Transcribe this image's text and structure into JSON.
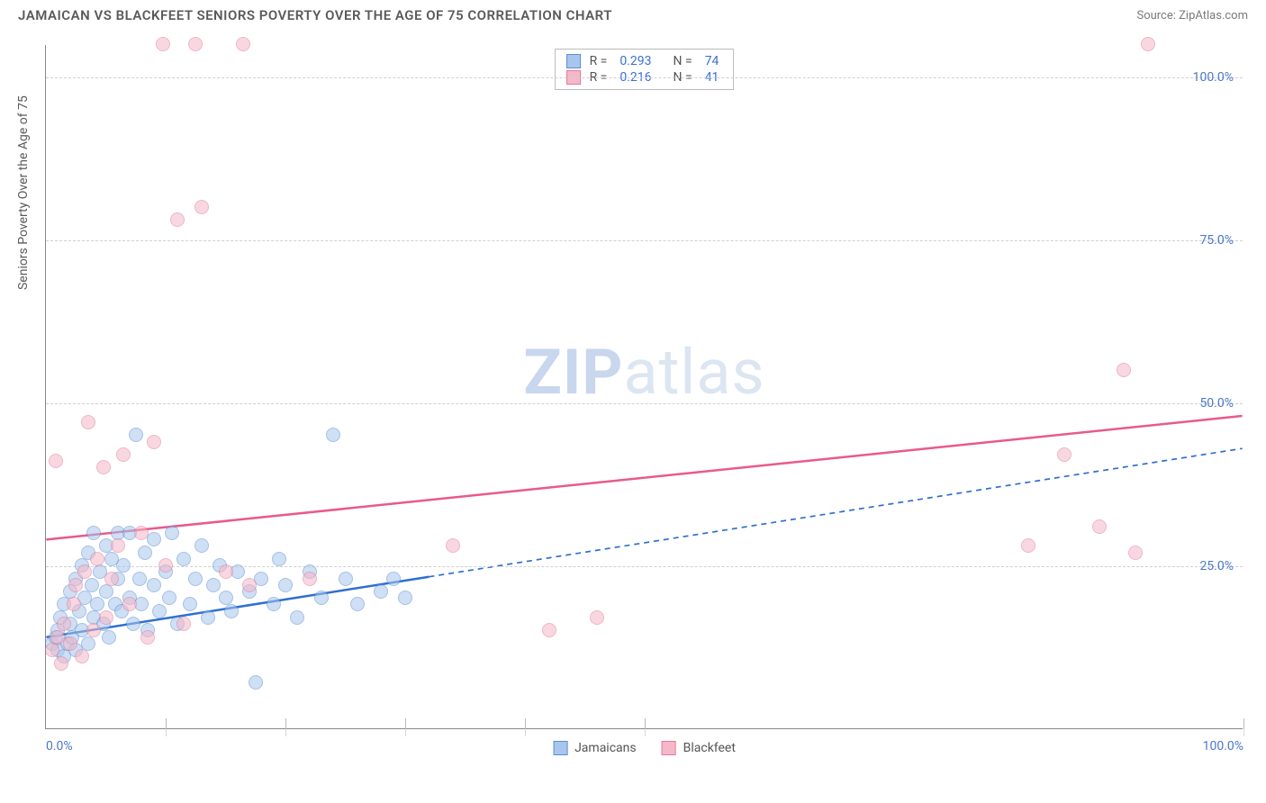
{
  "title": "JAMAICAN VS BLACKFEET SENIORS POVERTY OVER THE AGE OF 75 CORRELATION CHART",
  "source_label": "Source: ",
  "source_name": "ZipAtlas.com",
  "y_axis_label": "Seniors Poverty Over the Age of 75",
  "watermark": {
    "bold": "ZIP",
    "light": "atlas"
  },
  "chart": {
    "type": "scatter",
    "xlim": [
      0,
      100
    ],
    "ylim": [
      0,
      105
    ],
    "x_ticks": [
      0,
      10,
      20,
      30,
      40,
      50,
      100
    ],
    "x_tick_labels": {
      "0": "0.0%",
      "100": "100.0%"
    },
    "y_ticks": [
      25,
      50,
      75,
      100
    ],
    "y_tick_labels": {
      "25": "25.0%",
      "50": "50.0%",
      "75": "75.0%",
      "100": "100.0%"
    },
    "background_color": "#ffffff",
    "grid_color": "#d0d0d0",
    "axis_color": "#888888",
    "tick_label_color": "#4a78c8",
    "marker_radius": 8,
    "series": [
      {
        "name": "Jamaicans",
        "fill": "#a8c6ec",
        "stroke": "#5a8fd6",
        "fill_opacity": 0.55,
        "R": "0.293",
        "N": "74",
        "trend": {
          "x1": 0,
          "y1": 14,
          "x2": 100,
          "y2": 43,
          "solid_until_x": 32,
          "color": "#2f6fd0",
          "width": 2.5
        },
        "points": [
          [
            0.5,
            13
          ],
          [
            0.8,
            14
          ],
          [
            1,
            12
          ],
          [
            1,
            15
          ],
          [
            1.2,
            17
          ],
          [
            1.5,
            11
          ],
          [
            1.5,
            19
          ],
          [
            1.8,
            13
          ],
          [
            2,
            16
          ],
          [
            2,
            21
          ],
          [
            2.2,
            14
          ],
          [
            2.5,
            23
          ],
          [
            2.5,
            12
          ],
          [
            2.8,
            18
          ],
          [
            3,
            15
          ],
          [
            3,
            25
          ],
          [
            3.2,
            20
          ],
          [
            3.5,
            13
          ],
          [
            3.5,
            27
          ],
          [
            3.8,
            22
          ],
          [
            4,
            17
          ],
          [
            4,
            30
          ],
          [
            4.3,
            19
          ],
          [
            4.5,
            24
          ],
          [
            4.8,
            16
          ],
          [
            5,
            28
          ],
          [
            5,
            21
          ],
          [
            5.3,
            14
          ],
          [
            5.5,
            26
          ],
          [
            5.8,
            19
          ],
          [
            6,
            23
          ],
          [
            6,
            30
          ],
          [
            6.3,
            18
          ],
          [
            6.5,
            25
          ],
          [
            7,
            20
          ],
          [
            7,
            30
          ],
          [
            7.3,
            16
          ],
          [
            7.5,
            45
          ],
          [
            7.8,
            23
          ],
          [
            8,
            19
          ],
          [
            8.3,
            27
          ],
          [
            8.5,
            15
          ],
          [
            9,
            22
          ],
          [
            9,
            29
          ],
          [
            9.5,
            18
          ],
          [
            10,
            24
          ],
          [
            10.3,
            20
          ],
          [
            10.5,
            30
          ],
          [
            11,
            16
          ],
          [
            11.5,
            26
          ],
          [
            12,
            19
          ],
          [
            12.5,
            23
          ],
          [
            13,
            28
          ],
          [
            13.5,
            17
          ],
          [
            14,
            22
          ],
          [
            14.5,
            25
          ],
          [
            15,
            20
          ],
          [
            15.5,
            18
          ],
          [
            16,
            24
          ],
          [
            17,
            21
          ],
          [
            17.5,
            7
          ],
          [
            18,
            23
          ],
          [
            19,
            19
          ],
          [
            19.5,
            26
          ],
          [
            20,
            22
          ],
          [
            21,
            17
          ],
          [
            22,
            24
          ],
          [
            23,
            20
          ],
          [
            24,
            45
          ],
          [
            25,
            23
          ],
          [
            26,
            19
          ],
          [
            28,
            21
          ],
          [
            29,
            23
          ],
          [
            30,
            20
          ]
        ]
      },
      {
        "name": "Blackfeet",
        "fill": "#f5b8c8",
        "stroke": "#e27a9a",
        "fill_opacity": 0.55,
        "R": "0.216",
        "N": "41",
        "trend": {
          "x1": 0,
          "y1": 29,
          "x2": 100,
          "y2": 48,
          "solid_until_x": 100,
          "color": "#e85a8a",
          "width": 2.5
        },
        "points": [
          [
            0.5,
            12
          ],
          [
            1,
            14
          ],
          [
            1.3,
            10
          ],
          [
            1.5,
            16
          ],
          [
            2,
            13
          ],
          [
            2.3,
            19
          ],
          [
            2.5,
            22
          ],
          [
            3,
            11
          ],
          [
            3.2,
            24
          ],
          [
            3.5,
            47
          ],
          [
            4,
            15
          ],
          [
            4.3,
            26
          ],
          [
            4.8,
            40
          ],
          [
            5,
            17
          ],
          [
            5.5,
            23
          ],
          [
            6,
            28
          ],
          [
            6.5,
            42
          ],
          [
            7,
            19
          ],
          [
            0.8,
            41
          ],
          [
            8,
            30
          ],
          [
            8.5,
            14
          ],
          [
            9,
            44
          ],
          [
            9.8,
            105
          ],
          [
            10,
            25
          ],
          [
            11,
            78
          ],
          [
            11.5,
            16
          ],
          [
            12.5,
            105
          ],
          [
            13,
            80
          ],
          [
            15,
            24
          ],
          [
            16.5,
            105
          ],
          [
            17,
            22
          ],
          [
            22,
            23
          ],
          [
            34,
            28
          ],
          [
            42,
            15
          ],
          [
            46,
            17
          ],
          [
            82,
            28
          ],
          [
            85,
            42
          ],
          [
            88,
            31
          ],
          [
            90,
            55
          ],
          [
            91,
            27
          ],
          [
            92,
            105
          ]
        ]
      }
    ]
  },
  "stat_legend": {
    "r_label": "R =",
    "n_label": "N ="
  },
  "bottom_legend": {
    "items": [
      "Jamaicans",
      "Blackfeet"
    ]
  }
}
